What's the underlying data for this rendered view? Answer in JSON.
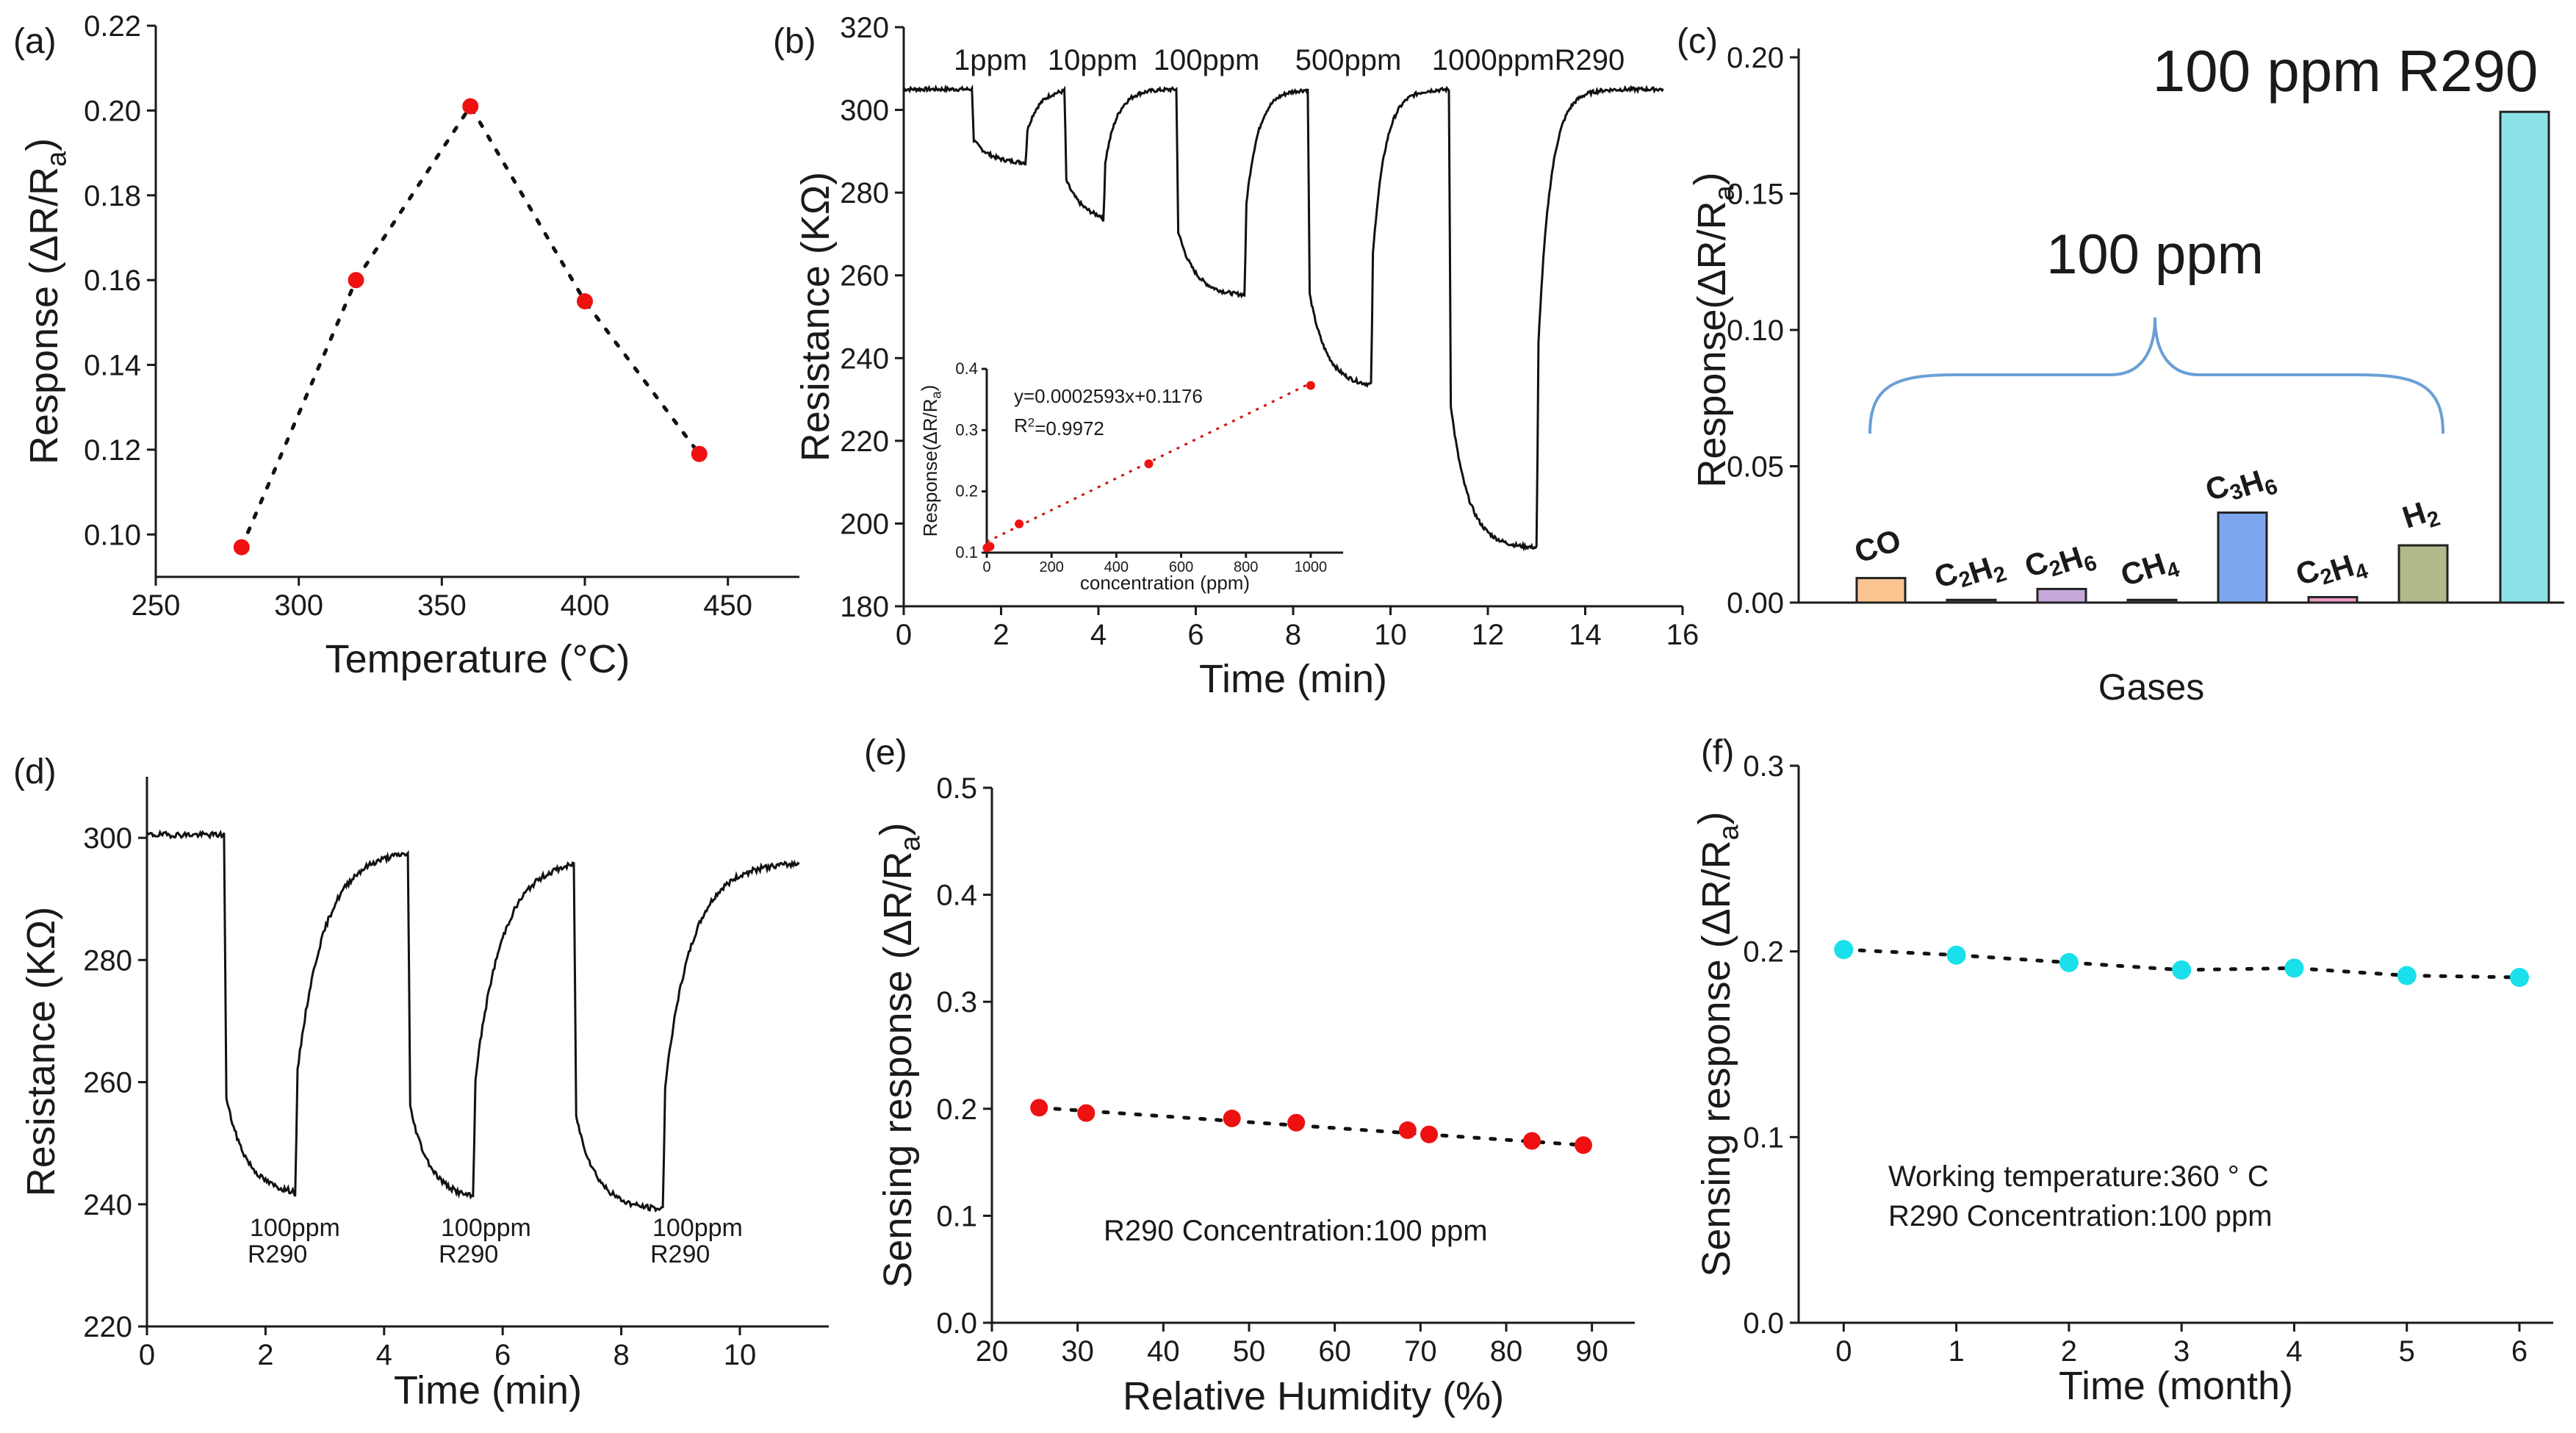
{
  "colors": {
    "red_marker": "#ee1111",
    "cyan_marker": "#19e0ea",
    "brace": "#6a9fd6"
  },
  "chart_data": [
    {
      "id": "a",
      "type": "scatter",
      "panel_label": "(a)",
      "title": "",
      "xlabel": "Temperature (°C)",
      "ylabel": "Response (ΔR/Ra)",
      "xlim": [
        250,
        475
      ],
      "ylim": [
        0.09,
        0.22
      ],
      "xticks": [
        250,
        300,
        350,
        400,
        450
      ],
      "yticks": [
        0.1,
        0.12,
        0.14,
        0.16,
        0.18,
        0.2,
        0.22
      ],
      "x": [
        280,
        320,
        360,
        400,
        440
      ],
      "y": [
        0.097,
        0.16,
        0.201,
        0.155,
        0.119
      ],
      "marker_color": "#ee1111"
    },
    {
      "id": "b",
      "type": "line",
      "panel_label": "(b)",
      "xlabel": "Time (min)",
      "ylabel": "Resistance (KΩ)",
      "xlim": [
        0,
        16
      ],
      "ylim": [
        180,
        320
      ],
      "xticks": [
        0,
        2,
        4,
        6,
        8,
        10,
        12,
        14,
        16
      ],
      "yticks": [
        180,
        200,
        220,
        240,
        260,
        280,
        300,
        320
      ],
      "annotations": [
        "1ppm",
        "10ppm",
        "100ppm",
        "500ppm",
        "1000ppmR290"
      ],
      "pulses": [
        {
          "on": 1.4,
          "off": 2.5,
          "low": 287
        },
        {
          "on": 3.3,
          "off": 4.1,
          "low": 273
        },
        {
          "on": 5.6,
          "off": 7.0,
          "low": 255
        },
        {
          "on": 8.3,
          "off": 9.6,
          "low": 233
        },
        {
          "on": 11.2,
          "off": 13.0,
          "low": 194
        }
      ],
      "baseline": 305,
      "end_time": 15.6,
      "inset": {
        "type": "scatter",
        "xlabel": "concentration (ppm)",
        "ylabel": "Response(ΔR/Ra)",
        "xlim": [
          0,
          1100
        ],
        "ylim": [
          0.1,
          0.4
        ],
        "xticks": [
          0,
          200,
          400,
          600,
          800,
          1000
        ],
        "yticks": [
          0.1,
          0.2,
          0.3,
          0.4
        ],
        "x": [
          1,
          10,
          100,
          500,
          1000
        ],
        "y": [
          0.108,
          0.11,
          0.147,
          0.245,
          0.373
        ],
        "equation": "y=0.0002593x+0.1176",
        "r2": "R²=0.9972",
        "slope": 0.0002593,
        "intercept": 0.1176
      }
    },
    {
      "id": "c",
      "type": "bar",
      "panel_label": "(c)",
      "xlabel": "Gases",
      "ylabel": "Response(ΔR/Ra)",
      "ylim": [
        0,
        0.2
      ],
      "yticks": [
        0.0,
        0.05,
        0.1,
        0.15,
        0.2
      ],
      "categories": [
        "CO",
        "C₂H₂",
        "C₂H₆",
        "CH₄",
        "C₃H₆",
        "C₂H₄",
        "H₂",
        "R290"
      ],
      "values": [
        0.009,
        0.001,
        0.005,
        0.001,
        0.033,
        0.002,
        0.021,
        0.18
      ],
      "bar_colors": [
        "#f9c490",
        "#555555",
        "#c6a8db",
        "#555555",
        "#7ea6ee",
        "#ef9cc6",
        "#b1b88a",
        "#8de2ea"
      ],
      "brace_label": "100 ppm",
      "highlight_label": "100 ppm R290"
    },
    {
      "id": "d",
      "type": "line",
      "panel_label": "(d)",
      "xlabel": "Time (min)",
      "ylabel": "Resistance (KΩ)",
      "xlim": [
        0,
        11.5
      ],
      "ylim": [
        220,
        310
      ],
      "xticks": [
        0,
        2,
        4,
        6,
        8,
        10
      ],
      "yticks": [
        220,
        240,
        260,
        280,
        300
      ],
      "baseline": 300.5,
      "pulses": [
        {
          "on": 1.3,
          "off": 2.5,
          "low": 241.5,
          "recover": 298
        },
        {
          "on": 4.4,
          "off": 5.5,
          "low": 240.5,
          "recover": 296.5
        },
        {
          "on": 7.2,
          "off": 8.7,
          "low": 239,
          "recover": 296
        }
      ],
      "end_time": 11.0,
      "annotations": [
        {
          "line1": "100ppm",
          "line2": "R290"
        },
        {
          "line1": "100ppm",
          "line2": "R290"
        },
        {
          "line1": "100ppm",
          "line2": "R290"
        }
      ]
    },
    {
      "id": "e",
      "type": "scatter",
      "panel_label": "(e)",
      "xlabel": "Relative Humidity (%)",
      "ylabel": "Sensing response (ΔR/Ra)",
      "xlim": [
        20,
        95
      ],
      "ylim": [
        0,
        0.5
      ],
      "xticks": [
        20,
        30,
        40,
        50,
        60,
        70,
        80,
        90
      ],
      "yticks": [
        0.0,
        0.1,
        0.2,
        0.3,
        0.4,
        0.5
      ],
      "x": [
        25.5,
        31,
        48,
        55.5,
        68.5,
        71,
        83,
        89
      ],
      "y": [
        0.201,
        0.196,
        0.191,
        0.187,
        0.18,
        0.176,
        0.17,
        0.166
      ],
      "annotation": "R290 Concentration:100 ppm",
      "marker_color": "#ee1111"
    },
    {
      "id": "f",
      "type": "scatter",
      "panel_label": "(f)",
      "xlabel": "Time (month)",
      "ylabel": "Sensing response (ΔR/Ra)",
      "xlim": [
        -0.4,
        6.3
      ],
      "ylim": [
        0,
        0.3
      ],
      "xticks": [
        0,
        1,
        2,
        3,
        4,
        5,
        6
      ],
      "yticks": [
        0.0,
        0.1,
        0.2,
        0.3
      ],
      "x": [
        0,
        1,
        2,
        3,
        4,
        5,
        6
      ],
      "y": [
        0.201,
        0.198,
        0.194,
        0.19,
        0.191,
        0.187,
        0.186
      ],
      "annotations": [
        "Working temperature:360 ° C",
        "R290 Concentration:100 ppm"
      ],
      "marker_color": "#19e0ea"
    }
  ]
}
